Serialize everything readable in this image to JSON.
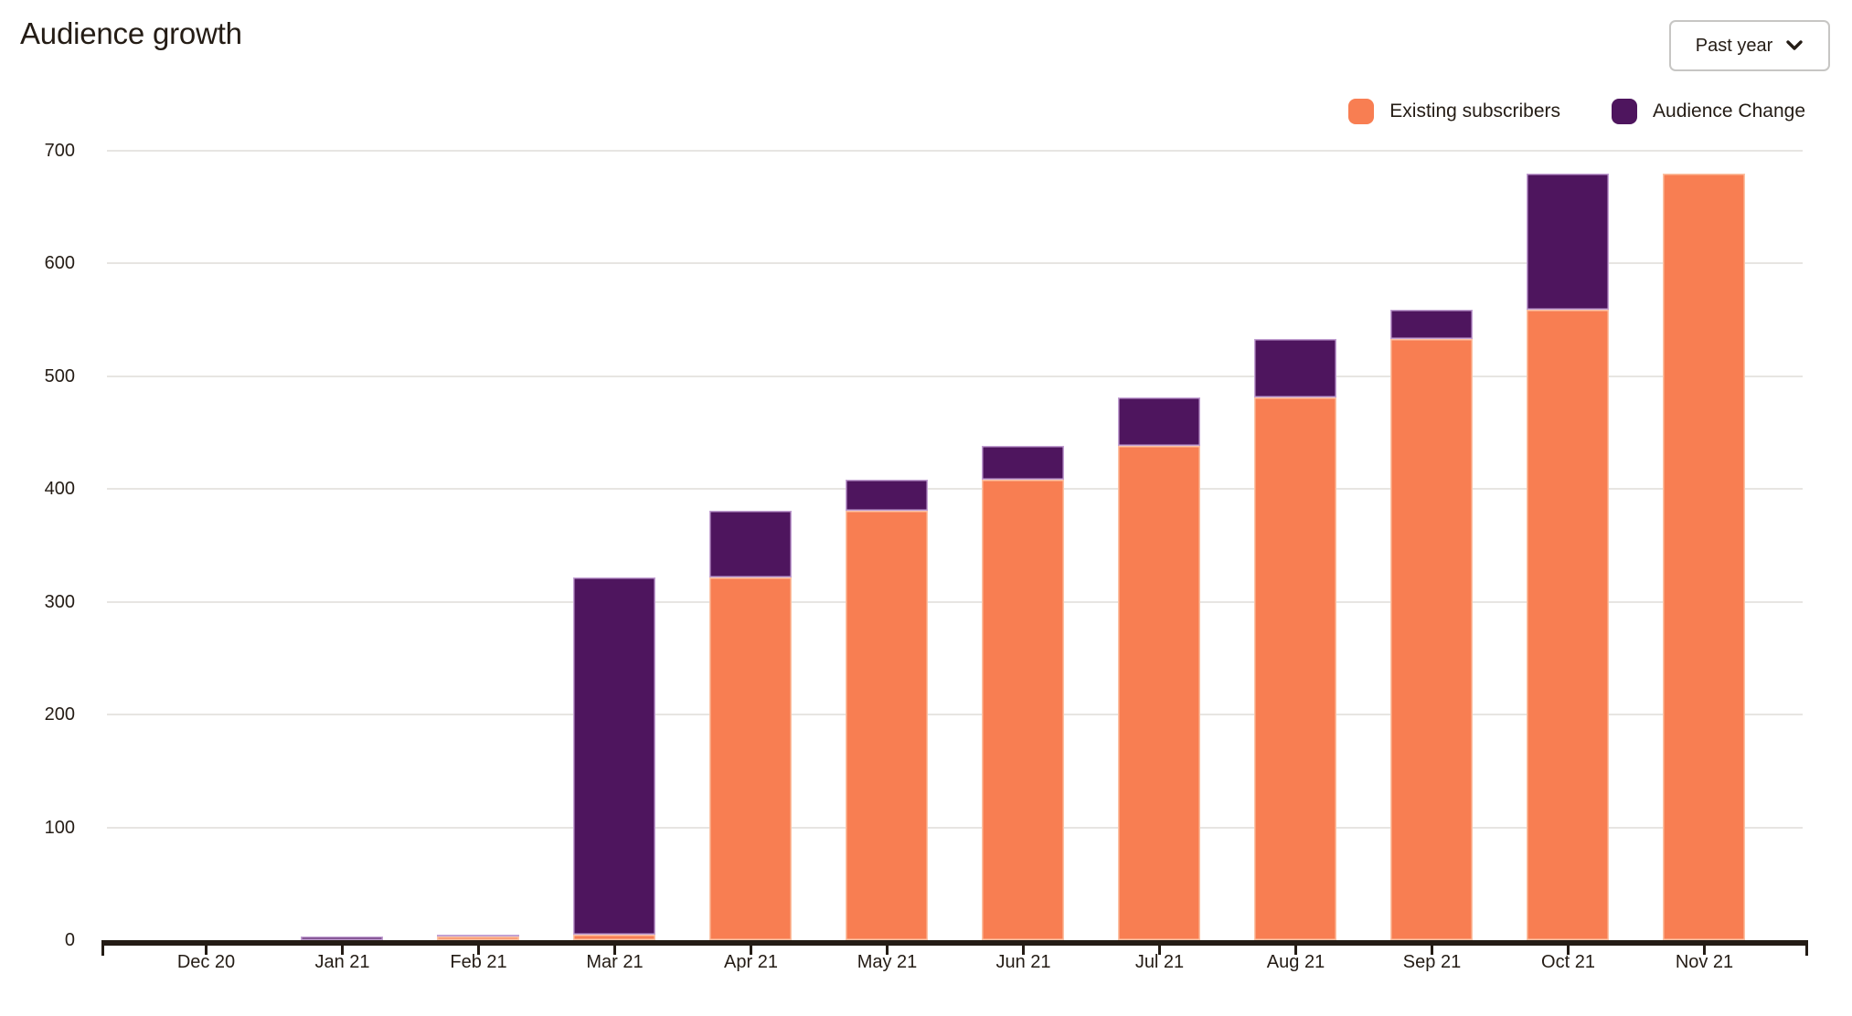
{
  "page": {
    "title": "Audience growth"
  },
  "controls": {
    "range_dropdown": {
      "label": "Past year",
      "icon": "chevron-down-icon"
    }
  },
  "legend": {
    "items": [
      {
        "label": "Existing subscribers",
        "color": "#f87e52"
      },
      {
        "label": "Audience Change",
        "color": "#4e155e"
      }
    ]
  },
  "colors": {
    "existing": "#f87e52",
    "existing_border": "#fcc2a4",
    "change": "#4e155e",
    "change_border": "#c2a0d2",
    "gridline": "#e7e5e2",
    "axis": "#241c15",
    "text": "#241c15"
  },
  "chart_data": {
    "type": "bar",
    "stacked": true,
    "title": "Audience growth",
    "categories": [
      "Dec 20",
      "Jan 21",
      "Feb 21",
      "Mar 21",
      "Apr 21",
      "May 21",
      "Jun 21",
      "Jul 21",
      "Aug 21",
      "Sep 21",
      "Oct 21",
      "Nov 21"
    ],
    "series": [
      {
        "name": "Existing subscribers",
        "color": "#f87e52",
        "values": [
          0,
          0,
          3,
          5,
          322,
          381,
          408,
          438,
          481,
          533,
          559,
          680
        ]
      },
      {
        "name": "Audience Change",
        "color": "#4e155e",
        "values": [
          0,
          3,
          2,
          317,
          59,
          27,
          30,
          43,
          52,
          26,
          121,
          0
        ]
      }
    ],
    "stack_totals": [
      0,
      3,
      5,
      322,
      381,
      408,
      438,
      481,
      533,
      559,
      680,
      680
    ],
    "ylim": [
      0,
      700
    ],
    "yticks": [
      0,
      100,
      200,
      300,
      400,
      500,
      600,
      700
    ],
    "xlabel": "",
    "ylabel": "",
    "grid": true,
    "legend_position": "top-right"
  }
}
